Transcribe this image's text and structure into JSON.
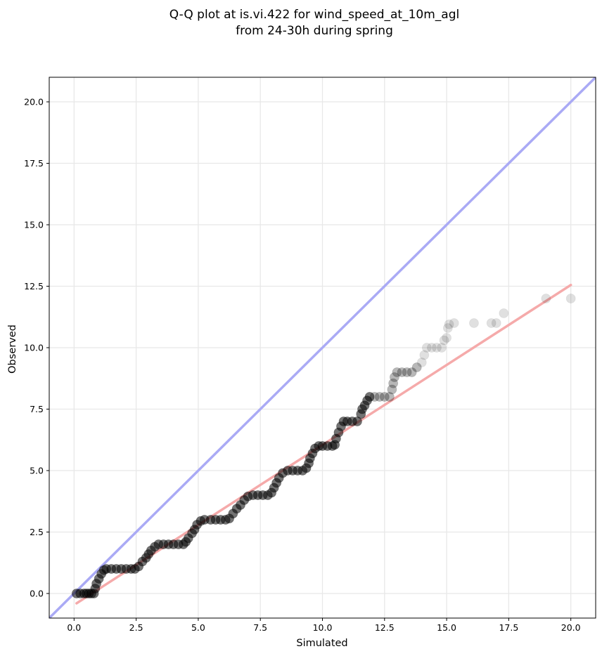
{
  "chart_data": {
    "type": "scatter",
    "title_lines": [
      "Q-Q plot at is.vi.422 for wind_speed_at_10m_agl",
      "from 24-30h during spring"
    ],
    "xlabel": "Simulated",
    "ylabel": "Observed",
    "xlim": [
      -1.0,
      21.0
    ],
    "ylim": [
      -1.0,
      21.0
    ],
    "xticks": [
      0.0,
      2.5,
      5.0,
      7.5,
      10.0,
      12.5,
      15.0,
      17.5,
      20.0
    ],
    "yticks": [
      0.0,
      2.5,
      5.0,
      7.5,
      10.0,
      12.5,
      15.0,
      17.5,
      20.0
    ],
    "xtick_labels": [
      "0.0",
      "2.5",
      "5.0",
      "7.5",
      "10.0",
      "12.5",
      "15.0",
      "17.5",
      "20.0"
    ],
    "ytick_labels": [
      "0.0",
      "2.5",
      "5.0",
      "7.5",
      "10.0",
      "12.5",
      "15.0",
      "17.5",
      "20.0"
    ],
    "grid": true,
    "identity_line": {
      "from": [
        -1.0,
        -1.0
      ],
      "to": [
        21.0,
        21.0
      ],
      "color": "#aaaaf5"
    },
    "fit_line": {
      "from": [
        0.1,
        -0.4
      ],
      "to": [
        20.0,
        12.55
      ],
      "color": "#f5aaaa"
    },
    "point_color": "#000000",
    "points": [
      [
        0.1,
        0.0
      ],
      [
        0.25,
        0.0
      ],
      [
        0.4,
        0.0
      ],
      [
        0.5,
        0.0
      ],
      [
        0.6,
        0.0
      ],
      [
        0.7,
        0.0
      ],
      [
        0.8,
        0.0
      ],
      [
        0.85,
        0.2
      ],
      [
        0.9,
        0.4
      ],
      [
        1.0,
        0.6
      ],
      [
        1.1,
        0.8
      ],
      [
        1.2,
        0.95
      ],
      [
        1.3,
        1.0
      ],
      [
        1.5,
        1.0
      ],
      [
        1.7,
        1.0
      ],
      [
        1.9,
        1.0
      ],
      [
        2.1,
        1.0
      ],
      [
        2.3,
        1.0
      ],
      [
        2.45,
        1.0
      ],
      [
        2.6,
        1.1
      ],
      [
        2.75,
        1.3
      ],
      [
        2.9,
        1.45
      ],
      [
        3.0,
        1.6
      ],
      [
        3.1,
        1.75
      ],
      [
        3.25,
        1.9
      ],
      [
        3.4,
        2.0
      ],
      [
        3.6,
        2.0
      ],
      [
        3.8,
        2.0
      ],
      [
        4.0,
        2.0
      ],
      [
        4.2,
        2.0
      ],
      [
        4.4,
        2.0
      ],
      [
        4.5,
        2.1
      ],
      [
        4.6,
        2.25
      ],
      [
        4.75,
        2.45
      ],
      [
        4.85,
        2.6
      ],
      [
        4.95,
        2.8
      ],
      [
        5.1,
        2.95
      ],
      [
        5.25,
        3.0
      ],
      [
        5.5,
        3.0
      ],
      [
        5.7,
        3.0
      ],
      [
        5.9,
        3.0
      ],
      [
        6.1,
        3.0
      ],
      [
        6.25,
        3.05
      ],
      [
        6.4,
        3.25
      ],
      [
        6.55,
        3.45
      ],
      [
        6.7,
        3.6
      ],
      [
        6.85,
        3.8
      ],
      [
        7.0,
        3.95
      ],
      [
        7.2,
        4.0
      ],
      [
        7.4,
        4.0
      ],
      [
        7.6,
        4.0
      ],
      [
        7.8,
        4.0
      ],
      [
        7.95,
        4.1
      ],
      [
        8.05,
        4.3
      ],
      [
        8.15,
        4.5
      ],
      [
        8.25,
        4.7
      ],
      [
        8.4,
        4.9
      ],
      [
        8.6,
        5.0
      ],
      [
        8.8,
        5.0
      ],
      [
        9.0,
        5.0
      ],
      [
        9.2,
        5.0
      ],
      [
        9.35,
        5.1
      ],
      [
        9.45,
        5.3
      ],
      [
        9.5,
        5.5
      ],
      [
        9.6,
        5.7
      ],
      [
        9.7,
        5.9
      ],
      [
        9.85,
        6.0
      ],
      [
        10.0,
        6.0
      ],
      [
        10.2,
        6.0
      ],
      [
        10.4,
        6.0
      ],
      [
        10.5,
        6.05
      ],
      [
        10.55,
        6.3
      ],
      [
        10.65,
        6.55
      ],
      [
        10.75,
        6.8
      ],
      [
        10.85,
        7.0
      ],
      [
        11.0,
        7.0
      ],
      [
        11.2,
        7.0
      ],
      [
        11.4,
        7.0
      ],
      [
        11.55,
        7.3
      ],
      [
        11.6,
        7.5
      ],
      [
        11.7,
        7.65
      ],
      [
        11.8,
        7.85
      ],
      [
        11.9,
        8.0
      ],
      [
        12.1,
        8.0
      ],
      [
        12.3,
        8.0
      ],
      [
        12.5,
        8.0
      ],
      [
        12.7,
        8.0
      ],
      [
        12.8,
        8.3
      ],
      [
        12.85,
        8.55
      ],
      [
        12.9,
        8.8
      ],
      [
        13.0,
        9.0
      ],
      [
        13.2,
        9.0
      ],
      [
        13.4,
        9.0
      ],
      [
        13.6,
        9.0
      ],
      [
        13.8,
        9.2
      ],
      [
        14.0,
        9.4
      ],
      [
        14.1,
        9.7
      ],
      [
        14.2,
        10.0
      ],
      [
        14.4,
        10.0
      ],
      [
        14.6,
        10.0
      ],
      [
        14.8,
        10.0
      ],
      [
        14.9,
        10.3
      ],
      [
        15.0,
        10.4
      ],
      [
        15.05,
        10.8
      ],
      [
        15.1,
        10.95
      ],
      [
        15.3,
        11.0
      ],
      [
        16.1,
        11.0
      ],
      [
        16.8,
        11.0
      ],
      [
        17.0,
        11.0
      ],
      [
        17.3,
        11.4
      ],
      [
        19.0,
        12.0
      ],
      [
        20.0,
        12.0
      ]
    ]
  }
}
